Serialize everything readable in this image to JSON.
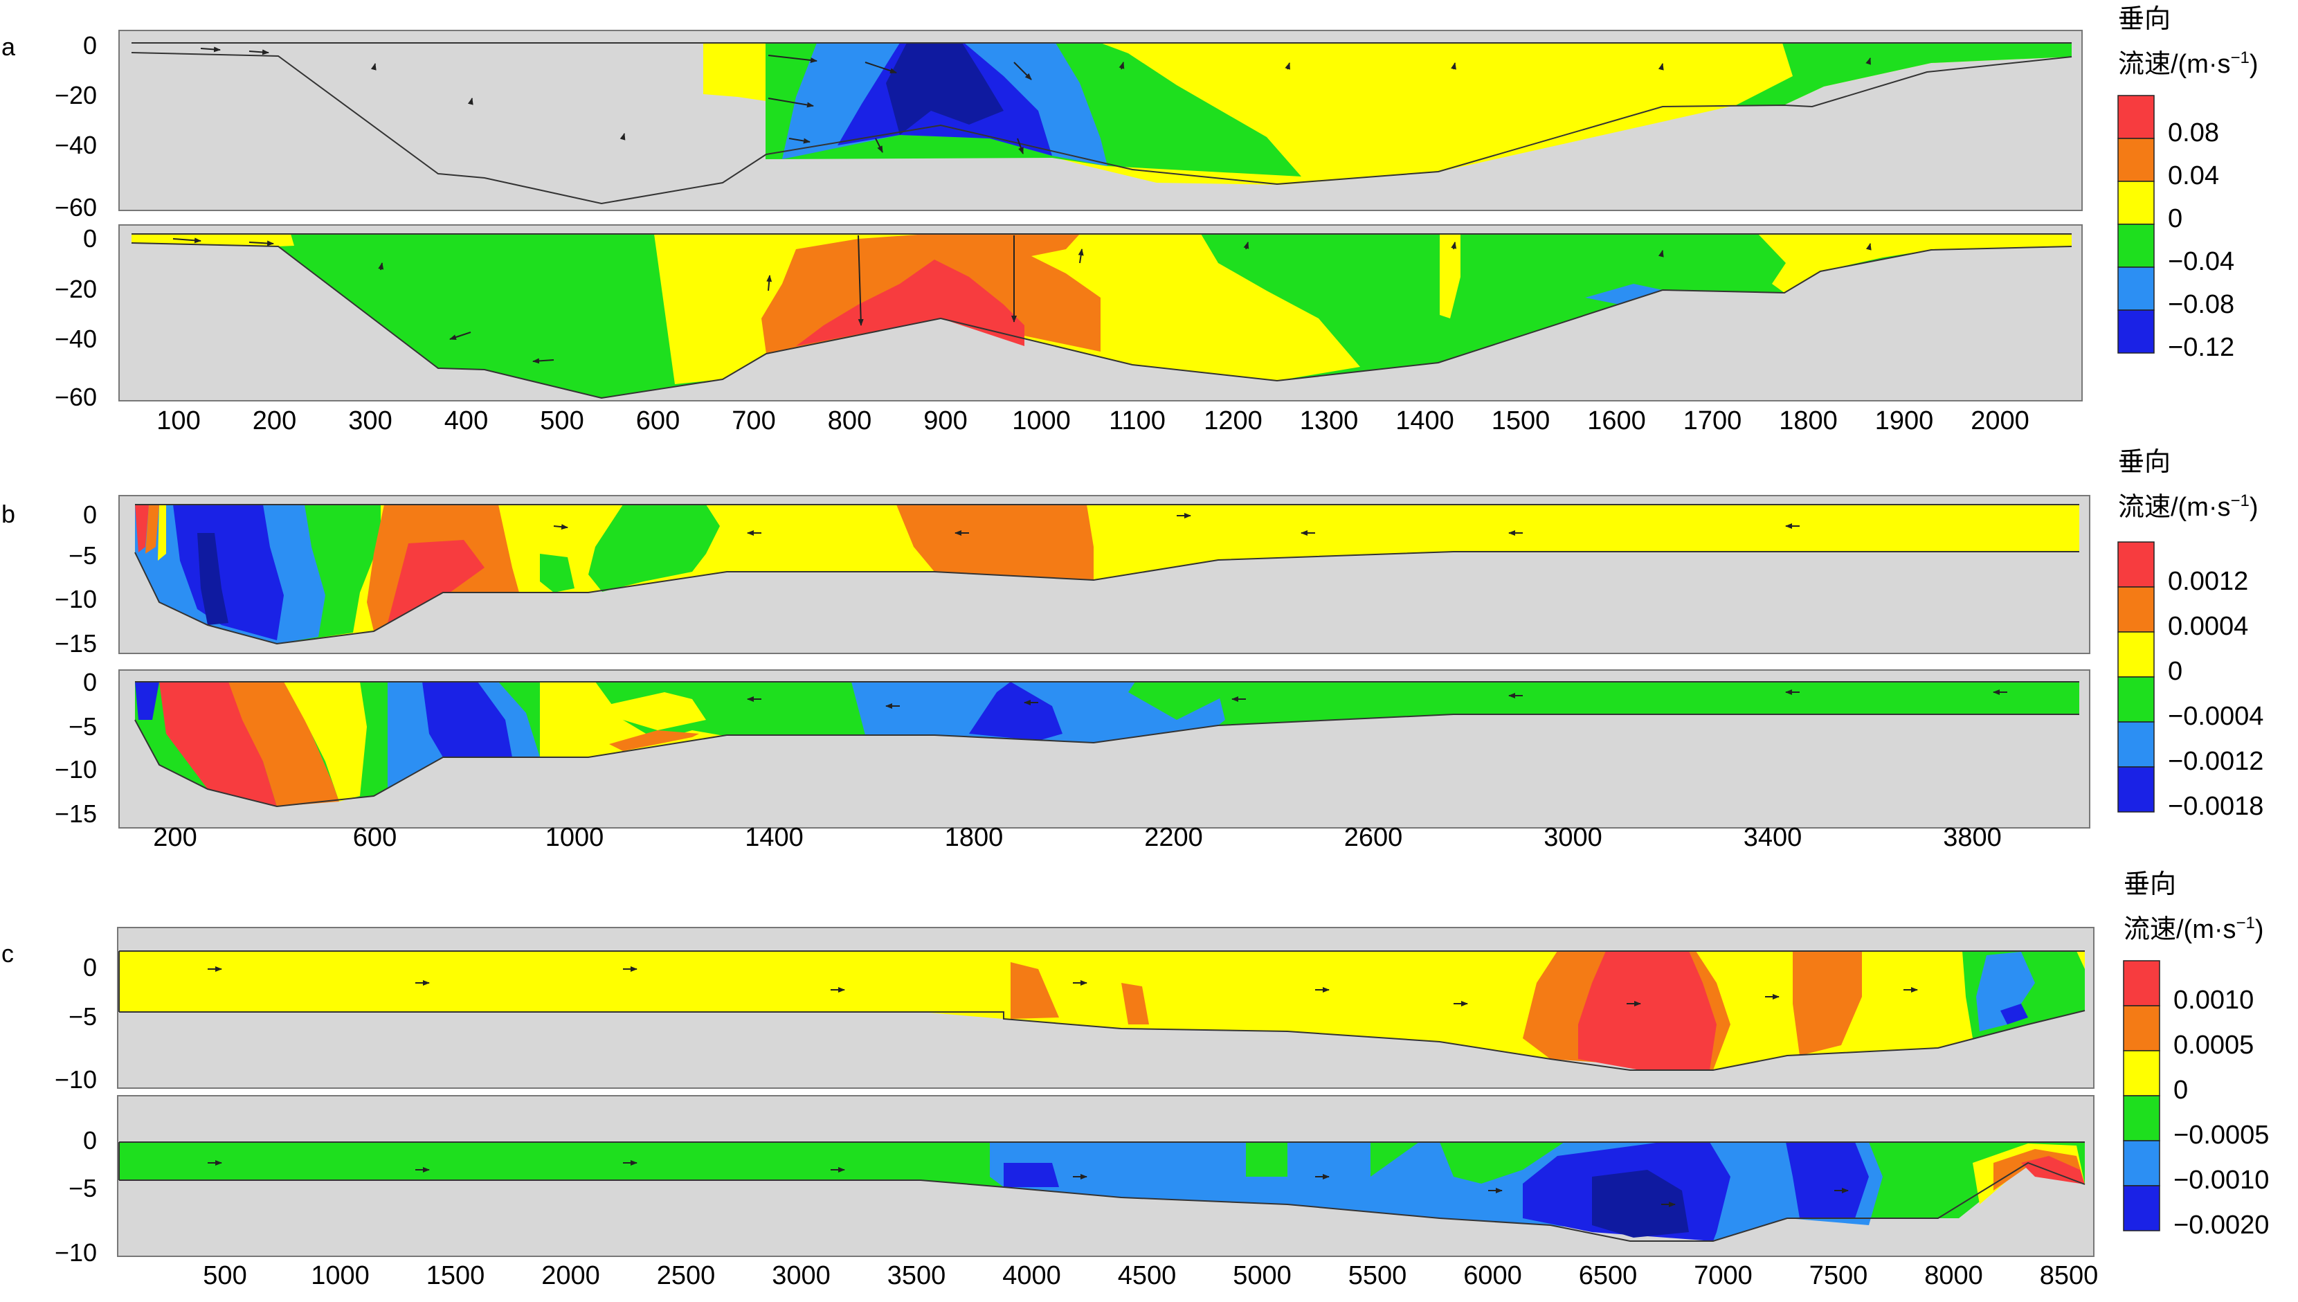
{
  "figure": {
    "panels": [
      "a",
      "b",
      "c"
    ]
  },
  "colors": {
    "red": "#f73c3f",
    "orange": "#f47b15",
    "yellow": "#ffff00",
    "green": "#1edf1e",
    "lightblue": "#2c8ff3",
    "blue": "#1a22e6",
    "navy": "#0f1aa0",
    "terrain": "#d7d7d7",
    "arrow": "#222222"
  },
  "chart_data": [
    {
      "type": "contour",
      "panel": "a",
      "xticks": [
        "100",
        "200",
        "300",
        "400",
        "500",
        "600",
        "700",
        "800",
        "900",
        "1000",
        "1100",
        "1200",
        "1300",
        "1400",
        "1500",
        "1600",
        "1700",
        "1800",
        "1900",
        "2000"
      ],
      "yticks": [
        "0",
        "−20",
        "−40",
        "−60"
      ],
      "xlim": [
        40,
        2040
      ],
      "ylim": [
        -64,
        3
      ],
      "bed": [
        [
          50,
          -6
        ],
        [
          200,
          -9
        ],
        [
          370,
          -49
        ],
        [
          400,
          -50
        ],
        [
          530,
          -61
        ],
        [
          660,
          -55
        ],
        [
          690,
          -52
        ],
        [
          720,
          -46
        ],
        [
          870,
          -33
        ],
        [
          1050,
          -47
        ],
        [
          1220,
          -52
        ],
        [
          1390,
          -47
        ],
        [
          1570,
          -25
        ],
        [
          1660,
          -24
        ],
        [
          1730,
          -24
        ],
        [
          1830,
          -15
        ],
        [
          1950,
          -7
        ],
        [
          2040,
          -5
        ]
      ],
      "legend": {
        "title_line1": "垂向",
        "title_line2": "流速/(m·s",
        "title_sup": "−1",
        "title_close": ")",
        "labels": [
          "0.08",
          "0.04",
          "0",
          "−0.04",
          "−0.08",
          "−0.12"
        ]
      }
    },
    {
      "type": "contour",
      "panel": "b",
      "xticks": [
        "200",
        "600",
        "1000",
        "1400",
        "1800",
        "2200",
        "2600",
        "3000",
        "3400",
        "3800"
      ],
      "yticks": [
        "0",
        "−5",
        "−10",
        "−15"
      ],
      "xlim": [
        130,
        4130
      ],
      "ylim": [
        -16,
        1.2
      ],
      "bed": [
        [
          145,
          -4.5
        ],
        [
          270,
          -12
        ],
        [
          420,
          -15
        ],
        [
          580,
          -14.5
        ],
        [
          780,
          -9
        ],
        [
          1000,
          -9
        ],
        [
          1380,
          -7
        ],
        [
          1700,
          -7.5
        ],
        [
          2100,
          -6
        ],
        [
          2350,
          -5.5
        ],
        [
          2800,
          -5
        ],
        [
          4110,
          -5
        ]
      ],
      "legend": {
        "title_line1": "垂向",
        "title_line2": "流速/(m·s",
        "title_sup": "−1",
        "title_close": ")",
        "labels": [
          "0.0012",
          "0.0004",
          "0",
          "−0.0004",
          "−0.0012",
          "−0.0018"
        ]
      }
    },
    {
      "type": "contour",
      "panel": "c",
      "xticks": [
        "500",
        "1000",
        "1500",
        "2000",
        "2500",
        "3000",
        "3500",
        "4000",
        "4500",
        "5000",
        "5500",
        "6000",
        "6500",
        "7000",
        "7500",
        "8000",
        "8500"
      ],
      "yticks": [
        "0",
        "−5",
        "−10"
      ],
      "xlim": [
        10,
        8630
      ],
      "ylim": [
        -11,
        3.5
      ],
      "bed": [
        [
          30,
          -4
        ],
        [
          3800,
          -4
        ],
        [
          4200,
          -5.5
        ],
        [
          4900,
          -6.3
        ],
        [
          5400,
          -6.6
        ],
        [
          6000,
          -7
        ],
        [
          6500,
          -7.5
        ],
        [
          6900,
          -9.2
        ],
        [
          7200,
          -9
        ],
        [
          7500,
          -7.5
        ],
        [
          7900,
          -7
        ],
        [
          8600,
          -4
        ]
      ],
      "legend": {
        "title_line1": "垂向",
        "title_line2": "流速/(m·s",
        "title_sup": "−1",
        "title_close": ")",
        "labels": [
          "0.0010",
          "0.0005",
          "0",
          "−0.0005",
          "−0.0010",
          "−0.0020"
        ]
      }
    }
  ]
}
